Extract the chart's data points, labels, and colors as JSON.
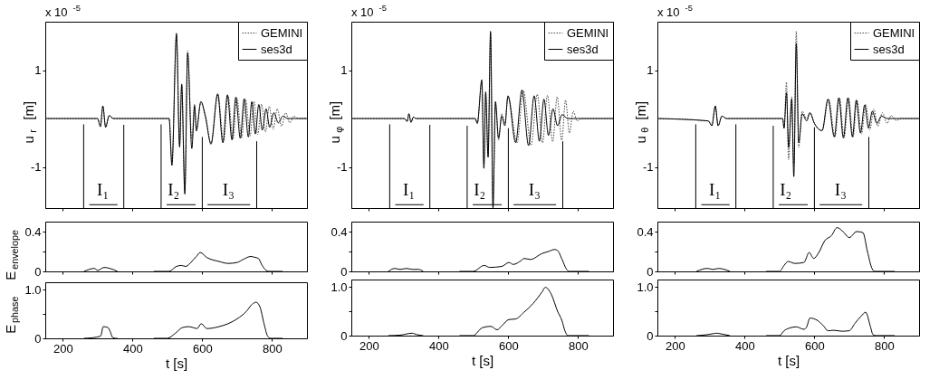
{
  "chart_data": [
    {
      "type": "line",
      "ylabel": "u$_{r}$ [m]",
      "xlim": [
        150,
        900
      ],
      "xticks": [
        200,
        400,
        600,
        800
      ],
      "ylim": [
        -1.85,
        2.0
      ],
      "yticks": [
        -1,
        1
      ],
      "tick_labels": "y",
      "legend": "top right",
      "annotations": [
        "x 10$^{-5}$",
        "I₁",
        "I₂",
        "I₃"
      ],
      "series": [
        {
          "name": "GEMINI",
          "color": "#444444",
          "line_style": "dotted",
          "x": [
            150,
            300,
            308,
            315,
            323,
            333,
            345,
            505,
            513,
            526,
            535,
            541,
            550,
            558,
            570,
            578,
            583,
            596,
            609,
            625,
            645,
            661,
            674,
            688,
            699,
            713,
            724,
            737,
            748,
            759,
            770,
            781,
            792,
            803,
            815,
            827,
            839,
            851,
            862,
            875,
            900
          ],
          "values": [
            0,
            0,
            -0.16,
            0.25,
            -0.18,
            0.06,
            0,
            0,
            -0.9,
            1.7,
            -0.55,
            0.72,
            -1.5,
            1.4,
            -0.42,
            0.3,
            -0.2,
            0.33,
            0.02,
            -0.5,
            0.5,
            -0.48,
            0.47,
            -0.43,
            0.43,
            -0.4,
            0.4,
            -0.36,
            0.35,
            -0.33,
            0.3,
            -0.28,
            0.25,
            -0.22,
            0.2,
            -0.16,
            0.12,
            -0.09,
            0.05,
            0,
            0
          ]
        },
        {
          "name": "ses3d",
          "color": "#000000",
          "line_style": "solid",
          "x": [
            150,
            300,
            308,
            315,
            323,
            333,
            345,
            505,
            513,
            526,
            535,
            541,
            550,
            558,
            570,
            578,
            583,
            596,
            609,
            625,
            644,
            659,
            672,
            685,
            696,
            709,
            720,
            732,
            742,
            752,
            762,
            772,
            783,
            793,
            805,
            818,
            831,
            844,
            900
          ],
          "values": [
            0,
            0,
            -0.17,
            0.26,
            -0.18,
            0.06,
            0,
            0,
            -0.97,
            1.76,
            -0.59,
            0.7,
            -1.56,
            1.35,
            -0.62,
            0.26,
            -0.26,
            0.35,
            0.05,
            -0.53,
            0.51,
            -0.5,
            0.49,
            -0.44,
            0.44,
            -0.41,
            0.41,
            -0.38,
            0.35,
            -0.32,
            0.29,
            -0.24,
            0.2,
            -0.18,
            0.12,
            -0.09,
            0.05,
            0,
            0
          ]
        },
        {
          "color": "#000000",
          "x": [
            260,
            260
          ],
          "values": [
            -1.85,
            -0.12
          ]
        },
        {
          "color": "#000000",
          "x": [
            375,
            375
          ],
          "values": [
            -1.85,
            -0.13
          ]
        },
        {
          "color": "#000000",
          "x": [
            482,
            482
          ],
          "values": [
            -1.85,
            -0.12
          ]
        },
        {
          "color": "#000000",
          "x": [
            600,
            600
          ],
          "values": [
            -1.85,
            -0.38
          ]
        },
        {
          "color": "#000000",
          "x": [
            756,
            756
          ],
          "values": [
            -1.85,
            -0.47
          ]
        },
        {
          "color": "#000000",
          "x": [
            276,
            357
          ],
          "values": [
            -1.78,
            -1.78
          ]
        },
        {
          "color": "#000000",
          "x": [
            498,
            581
          ],
          "values": [
            -1.78,
            -1.78
          ]
        },
        {
          "color": "#000000",
          "x": [
            615,
            737
          ],
          "values": [
            -1.78,
            -1.78
          ]
        }
      ]
    },
    {
      "type": "line",
      "ylabel": "u$_{φ}$ [m]",
      "xlim": [
        150,
        900
      ],
      "xticks": [
        200,
        400,
        600,
        800
      ],
      "ylim": [
        -1.85,
        2.0
      ],
      "yticks": [
        -1,
        1
      ],
      "tick_labels": "y",
      "legend": "top right",
      "annotations": [
        "x 10$^{-5}$",
        "I₁",
        "I₂",
        "I₃"
      ],
      "series": [
        {
          "name": "GEMINI",
          "color": "#444444",
          "line_style": "dotted",
          "x": [
            150,
            302,
            310,
            315,
            321,
            328,
            335,
            505,
            511,
            524,
            530,
            535,
            542,
            549,
            556,
            563,
            572,
            581,
            590,
            599,
            625,
            643,
            665,
            683,
            698,
            712,
            727,
            740,
            753,
            764,
            775,
            786,
            797,
            810,
            900
          ],
          "values": [
            0,
            0,
            -0.05,
            0.09,
            -0.07,
            0.03,
            0,
            0,
            -0.1,
            0.75,
            -0.95,
            0.5,
            -0.75,
            1.75,
            -1.8,
            0.3,
            -0.45,
            0.1,
            -0.1,
            0.45,
            -0.5,
            0.58,
            -0.55,
            0.5,
            -0.5,
            0.48,
            -0.48,
            0.45,
            -0.45,
            0.38,
            -0.3,
            0.15,
            -0.05,
            0,
            0
          ]
        },
        {
          "name": "ses3d",
          "color": "#000000",
          "line_style": "solid",
          "x": [
            150,
            302,
            310,
            315,
            321,
            328,
            335,
            505,
            511,
            524,
            530,
            535,
            542,
            549,
            556,
            563,
            572,
            581,
            590,
            599,
            621,
            639,
            658,
            674,
            689,
            702,
            715,
            728,
            741,
            754,
            770,
            900
          ],
          "values": [
            0,
            0,
            -0.06,
            0.1,
            -0.08,
            0.03,
            0,
            0,
            -0.1,
            0.8,
            -1.03,
            0.55,
            -0.8,
            1.8,
            -1.85,
            0.35,
            -0.4,
            0.05,
            -0.15,
            0.47,
            -0.5,
            0.59,
            -0.56,
            0.47,
            -0.47,
            0.4,
            -0.35,
            0.2,
            -0.15,
            0.08,
            0,
            0
          ]
        },
        {
          "color": "#000000",
          "x": [
            260,
            260
          ],
          "values": [
            -1.85,
            -0.12
          ]
        },
        {
          "color": "#000000",
          "x": [
            375,
            375
          ],
          "values": [
            -1.85,
            -0.13
          ]
        },
        {
          "color": "#000000",
          "x": [
            482,
            482
          ],
          "values": [
            -1.85,
            -0.15
          ]
        },
        {
          "color": "#000000",
          "x": [
            600,
            600
          ],
          "values": [
            -1.85,
            -0.2
          ]
        },
        {
          "color": "#000000",
          "x": [
            756,
            756
          ],
          "values": [
            -1.85,
            -0.47
          ]
        },
        {
          "color": "#000000",
          "x": [
            276,
            357
          ],
          "values": [
            -1.78,
            -1.78
          ]
        },
        {
          "color": "#000000",
          "x": [
            498,
            581
          ],
          "values": [
            -1.78,
            -1.78
          ]
        },
        {
          "color": "#000000",
          "x": [
            615,
            737
          ],
          "values": [
            -1.78,
            -1.78
          ]
        }
      ]
    },
    {
      "type": "line",
      "ylabel": "u$_{θ}$ [m]",
      "xlim": [
        150,
        900
      ],
      "xticks": [
        200,
        400,
        600,
        800
      ],
      "ylim": [
        -1.85,
        2.0
      ],
      "yticks": [
        -1,
        1
      ],
      "tick_labels": "y",
      "legend": "top right",
      "annotations": [
        "x 10$^{-5}$",
        "I₁",
        "I₂",
        "I₃"
      ],
      "series": [
        {
          "name": "GEMINI",
          "color": "#444444",
          "line_style": "dotted",
          "x": [
            150,
            296,
            306,
            316,
            324,
            335,
            348,
            509,
            513,
            520,
            526,
            535,
            541,
            548,
            555,
            565,
            578,
            587,
            600,
            622,
            641,
            659,
            672,
            685,
            698,
            711,
            722,
            735,
            747,
            759,
            770,
            782,
            795,
            808,
            820,
            835,
            850,
            900
          ],
          "values": [
            0,
            -0.05,
            -0.15,
            0.25,
            -0.15,
            0.05,
            0,
            0,
            -0.2,
            0.75,
            -0.85,
            0.45,
            -0.95,
            1.8,
            -0.6,
            0.15,
            0,
            0.12,
            -0.1,
            -0.25,
            0.4,
            -0.38,
            0.43,
            -0.4,
            0.43,
            -0.38,
            0.38,
            -0.32,
            0.3,
            -0.24,
            0.2,
            -0.16,
            0.12,
            -0.1,
            0.06,
            -0.04,
            0,
            0
          ]
        },
        {
          "name": "ses3d",
          "color": "#000000",
          "line_style": "solid",
          "x": [
            150,
            296,
            306,
            316,
            324,
            335,
            348,
            509,
            513,
            520,
            526,
            535,
            541,
            548,
            555,
            565,
            578,
            587,
            600,
            622,
            639,
            657,
            670,
            683,
            696,
            709,
            720,
            732,
            744,
            755,
            766,
            779,
            792,
            809,
            900
          ],
          "values": [
            0,
            -0.05,
            -0.15,
            0.26,
            -0.15,
            0.05,
            0,
            0,
            -0.2,
            0.53,
            -0.6,
            0.4,
            -1.2,
            1.55,
            -0.5,
            0.1,
            -0.05,
            0.12,
            -0.1,
            -0.25,
            0.4,
            -0.38,
            0.43,
            -0.4,
            0.43,
            -0.38,
            0.38,
            -0.3,
            0.28,
            -0.2,
            0.15,
            -0.1,
            0.05,
            0,
            0
          ]
        },
        {
          "color": "#000000",
          "x": [
            260,
            260
          ],
          "values": [
            -1.85,
            -0.12
          ]
        },
        {
          "color": "#000000",
          "x": [
            375,
            375
          ],
          "values": [
            -1.85,
            -0.12
          ]
        },
        {
          "color": "#000000",
          "x": [
            482,
            482
          ],
          "values": [
            -1.85,
            -0.15
          ]
        },
        {
          "color": "#000000",
          "x": [
            600,
            600
          ],
          "values": [
            -1.85,
            -0.18
          ]
        },
        {
          "color": "#000000",
          "x": [
            756,
            756
          ],
          "values": [
            -1.85,
            -0.38
          ]
        },
        {
          "color": "#000000",
          "x": [
            276,
            357
          ],
          "values": [
            -1.78,
            -1.78
          ]
        },
        {
          "color": "#000000",
          "x": [
            498,
            581
          ],
          "values": [
            -1.78,
            -1.78
          ]
        },
        {
          "color": "#000000",
          "x": [
            615,
            737
          ],
          "values": [
            -1.78,
            -1.78
          ]
        }
      ]
    },
    {
      "type": "line",
      "ylabel": "E$_{envelope}$",
      "xlim": [
        150,
        900
      ],
      "xticks": [
        200,
        400,
        600,
        800
      ],
      "ylim": [
        0,
        0.5
      ],
      "yticks": [
        0,
        {
          "value": 0.2,
          "label": null
        },
        0.4
      ],
      "tick_labels": "y",
      "series": [
        {
          "color": "#000000",
          "x": [
            261,
            291,
            300,
            319,
            335,
            357,
            410,
            461,
            504,
            526,
            540,
            552,
            570,
            583,
            594,
            613,
            648,
            674,
            700,
            717,
            739,
            752,
            761,
            770,
            783,
            791,
            830
          ],
          "values": [
            0,
            0.03,
            0.01,
            0.04,
            0.03,
            0,
            null,
            0,
            0,
            0.05,
            0.06,
            0.05,
            0.1,
            0.15,
            0.19,
            0.14,
            0.1,
            0.08,
            0.09,
            0.12,
            0.15,
            0.14,
            0.13,
            0.07,
            0.01,
            0,
            0
          ]
        }
      ]
    },
    {
      "type": "line",
      "xlim": [
        150,
        900
      ],
      "xticks": [
        200,
        400,
        600,
        800
      ],
      "ylim": [
        0,
        0.5
      ],
      "yticks": [
        0,
        {
          "value": 0.2,
          "label": null
        },
        0.4
      ],
      "tick_labels": "y",
      "series": [
        {
          "color": "#000000",
          "x": [
            256,
            274,
            290,
            308,
            325,
            343,
            356,
            410,
            460,
            499,
            531,
            546,
            581,
            602,
            614,
            637,
            645,
            663,
            697,
            715,
            733,
            741,
            754,
            767,
            775,
            831
          ],
          "values": [
            0,
            0.03,
            0.02,
            0.03,
            0.02,
            0.02,
            0,
            null,
            0,
            0,
            0.06,
            0.04,
            0.05,
            0.09,
            0.07,
            0.11,
            0.13,
            0.12,
            0.18,
            0.2,
            0.22,
            0.21,
            0.12,
            0.02,
            0,
            0
          ]
        }
      ]
    },
    {
      "type": "line",
      "xlim": [
        150,
        900
      ],
      "xticks": [
        200,
        400,
        600,
        800
      ],
      "ylim": [
        0,
        0.5
      ],
      "yticks": [
        0,
        {
          "value": 0.2,
          "label": null
        },
        0.4
      ],
      "tick_labels": "y",
      "series": [
        {
          "color": "#000000",
          "x": [
            262,
            293,
            310,
            325,
            358,
            410,
            462,
            500,
            513,
            525,
            544,
            570,
            585,
            598,
            611,
            630,
            649,
            665,
            682,
            700,
            721,
            739,
            752,
            765,
            773,
            830
          ],
          "values": [
            0,
            0.03,
            0.02,
            0.03,
            0,
            null,
            0,
            0,
            0.06,
            0.1,
            0.08,
            0.09,
            0.19,
            0.13,
            0.18,
            0.31,
            0.36,
            0.44,
            0.4,
            0.34,
            0.4,
            0.39,
            0.2,
            0.03,
            0,
            0
          ]
        }
      ]
    },
    {
      "type": "line",
      "ylabel": "E$_{phase}$",
      "xlabel": "t [s]",
      "xlim": [
        150,
        900
      ],
      "xticks": [
        200,
        400,
        600,
        800
      ],
      "ylim": [
        0,
        1.15
      ],
      "yticks": [
        0,
        {
          "value": 0.5,
          "label": null
        },
        {
          "value": 1.0,
          "label": "1.0"
        }
      ],
      "series": [
        {
          "color": "#000000",
          "x": [
            261,
            283,
            309,
            316,
            330,
            336,
            343,
            352,
            357,
            410,
            461,
            500,
            522,
            543,
            561,
            574,
            585,
            597,
            613,
            648,
            674,
            700,
            726,
            743,
            754,
            765,
            777,
            787,
            796,
            830
          ],
          "values": [
            0,
            0.01,
            0.05,
            0.24,
            0.22,
            0.14,
            0.02,
            0,
            0,
            null,
            0,
            0,
            0.1,
            0.22,
            0.24,
            0.22,
            0.2,
            0.3,
            0.2,
            0.24,
            0.3,
            0.4,
            0.55,
            0.7,
            0.74,
            0.65,
            0.3,
            0.05,
            0,
            0
          ]
        }
      ]
    },
    {
      "type": "line",
      "xlabel": "t [s]",
      "xlim": [
        150,
        900
      ],
      "xticks": [
        200,
        400,
        600,
        800
      ],
      "ylim": [
        0,
        1.15
      ],
      "yticks": [
        0,
        {
          "value": 0.5,
          "label": null
        },
        {
          "value": 1.0,
          "label": "1.0"
        }
      ],
      "series": [
        {
          "color": "#000000",
          "x": [
            256,
            290,
            324,
            338,
            356,
            410,
            460,
            499,
            525,
            550,
            568,
            581,
            602,
            620,
            645,
            671,
            697,
            706,
            723,
            741,
            754,
            762,
            771,
            831
          ],
          "values": [
            0,
            0.01,
            0.05,
            0.02,
            0,
            null,
            0,
            0,
            0.16,
            0.19,
            0.12,
            0.2,
            0.33,
            0.34,
            0.48,
            0.66,
            0.9,
            0.99,
            0.85,
            0.5,
            0.3,
            0.1,
            0,
            0
          ]
        }
      ]
    },
    {
      "type": "line",
      "xlabel": "t [s]",
      "xlim": [
        150,
        900
      ],
      "xticks": [
        200,
        400,
        600,
        800
      ],
      "ylim": [
        0,
        1.15
      ],
      "yticks": [
        0,
        {
          "value": 0.5,
          "label": null
        },
        {
          "value": 1.0,
          "label": "1.0"
        }
      ],
      "series": [
        {
          "color": "#000000",
          "x": [
            262,
            293,
            310,
            320,
            329,
            358,
            410,
            462,
            500,
            513,
            531,
            548,
            570,
            578,
            587,
            609,
            626,
            639,
            656,
            678,
            700,
            716,
            734,
            747,
            760,
            768,
            776,
            830
          ],
          "values": [
            0,
            0.02,
            0.04,
            0.05,
            0.04,
            0,
            null,
            0,
            0,
            0.1,
            0.16,
            0.18,
            0.13,
            0.18,
            0.36,
            0.31,
            0.2,
            0.1,
            0.11,
            0.09,
            0.1,
            0.25,
            0.4,
            0.48,
            0.2,
            0.02,
            0,
            0
          ]
        }
      ]
    }
  ]
}
